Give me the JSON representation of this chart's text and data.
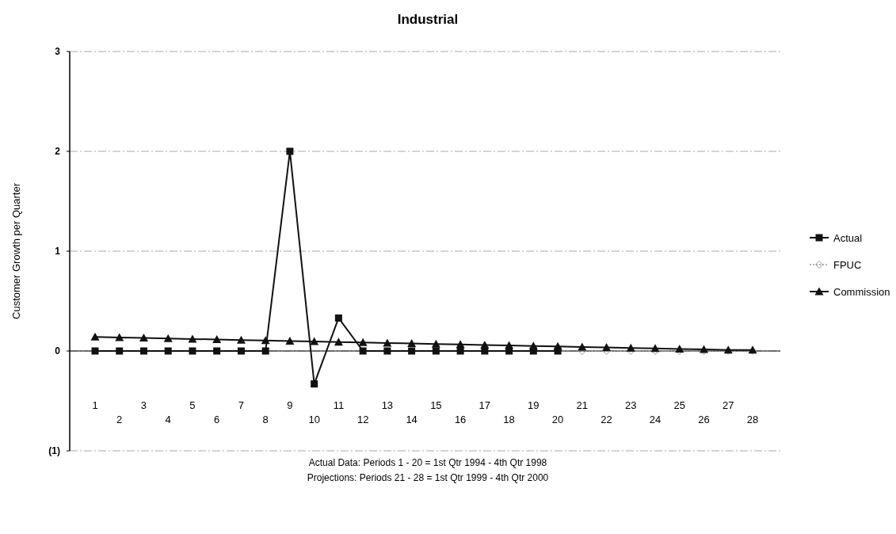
{
  "chart_data": {
    "type": "line",
    "title": "Industrial",
    "ylabel": "Customer Growth per Quarter",
    "categories": [
      "1",
      "2",
      "3",
      "4",
      "5",
      "6",
      "7",
      "8",
      "9",
      "10",
      "11",
      "12",
      "13",
      "14",
      "15",
      "16",
      "17",
      "18",
      "19",
      "20",
      "21",
      "22",
      "23",
      "24",
      "25",
      "26",
      "27",
      "28"
    ],
    "series": [
      {
        "name": "Actual",
        "color": "#111111",
        "marker": "square",
        "line_style": "solid",
        "values": [
          0,
          0,
          0,
          0,
          0,
          0,
          0,
          0,
          2,
          -0.33,
          0.33,
          0,
          0,
          0,
          0,
          0,
          0,
          0,
          0,
          0,
          null,
          null,
          null,
          null,
          null,
          null,
          null,
          null
        ]
      },
      {
        "name": "FPUC",
        "color": "#999999",
        "marker": "diamond",
        "line_style": "dotted",
        "values": [
          null,
          null,
          null,
          null,
          null,
          null,
          null,
          null,
          null,
          null,
          null,
          null,
          null,
          null,
          null,
          null,
          null,
          null,
          null,
          null,
          0,
          0,
          0,
          0,
          0,
          0,
          0,
          0
        ]
      },
      {
        "name": "Commission",
        "color": "#111111",
        "marker": "triangle",
        "line_style": "solid",
        "values": [
          0.14,
          0.135,
          0.13,
          0.125,
          0.12,
          0.115,
          0.11,
          0.105,
          0.1,
          0.095,
          0.09,
          0.085,
          0.08,
          0.075,
          0.07,
          0.065,
          0.06,
          0.055,
          0.05,
          0.045,
          0.04,
          0.035,
          0.03,
          0.025,
          0.02,
          0.015,
          0.01,
          0.01
        ]
      }
    ],
    "ylim": [
      -1,
      3
    ],
    "yticks": [
      {
        "value": -1,
        "label": "(1)"
      },
      0,
      1,
      2,
      3
    ],
    "grid": "y",
    "legend": "right",
    "annotations": [
      "Actual Data:  Periods 1 - 20 = 1st Qtr 1994 - 4th Qtr 1998",
      "Projections:  Periods 21 - 28 = 1st Qtr 1999 - 4th Qtr 2000"
    ]
  }
}
